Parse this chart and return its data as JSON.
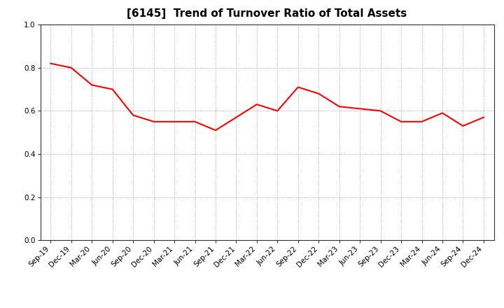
{
  "title": "[6145]  Trend of Turnover Ratio of Total Assets",
  "x_labels": [
    "Sep-19",
    "Dec-19",
    "Mar-20",
    "Jun-20",
    "Sep-20",
    "Dec-20",
    "Mar-21",
    "Jun-21",
    "Sep-21",
    "Dec-21",
    "Mar-22",
    "Jun-22",
    "Sep-22",
    "Dec-22",
    "Mar-23",
    "Jun-23",
    "Sep-23",
    "Dec-23",
    "Mar-24",
    "Jun-24",
    "Sep-24",
    "Dec-24"
  ],
  "y_values": [
    0.82,
    0.8,
    0.72,
    0.7,
    0.58,
    0.55,
    0.55,
    0.55,
    0.51,
    0.57,
    0.63,
    0.6,
    0.71,
    0.68,
    0.62,
    0.61,
    0.6,
    0.55,
    0.55,
    0.59,
    0.53,
    0.57
  ],
  "line_color": "#ff0000",
  "line_width": 1.5,
  "ylim": [
    0.0,
    1.0
  ],
  "yticks": [
    0.0,
    0.2,
    0.4,
    0.6,
    0.8,
    1.0
  ],
  "background_color": "#ffffff",
  "grid_color": "#999999",
  "title_fontsize": 11,
  "tick_fontsize": 7.5
}
